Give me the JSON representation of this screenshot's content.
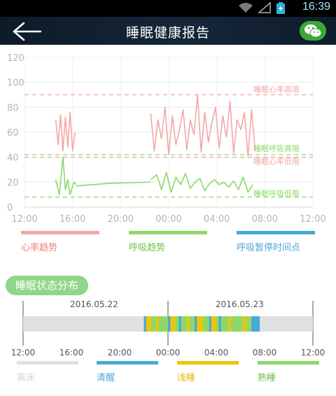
{
  "status_bar": {
    "time": "16:39"
  },
  "header": {
    "title": "睡眠健康报告"
  },
  "colors": {
    "heart": "#f4a7a6",
    "breath": "#8dd868",
    "pause": "#4aa8d8",
    "awake": "#4aa8d8",
    "light": "#f0c400",
    "deep": "#8dd868",
    "offbed": "#e0e0e0"
  },
  "chart_data": {
    "type": "line",
    "y_ticks": [
      "0",
      "20",
      "40",
      "60",
      "80",
      "100",
      "120"
    ],
    "x_ticks": [
      "12:00",
      "16:00",
      "20:00",
      "00:00",
      "04:00",
      "08:00",
      "12:00"
    ],
    "ylim": [
      0,
      120
    ],
    "thresholds": [
      {
        "label": "睡眠心率高限",
        "value": 90,
        "color": "#f4a7a6"
      },
      {
        "label": "睡眠呼吸高限",
        "value": 42,
        "color": "#8dd868"
      },
      {
        "label": "睡眠心率低限",
        "value": 40,
        "color": "#f4a7a6"
      },
      {
        "label": "睡眠呼吸低限",
        "value": 8,
        "color": "#8dd868"
      }
    ],
    "series": [
      {
        "name": "心率趋势",
        "color": "#f4a7a6",
        "segments": [
          {
            "x": [
              14.6,
              14.8,
              15.0,
              15.2,
              15.4,
              15.6,
              15.8,
              16.0,
              16.2
            ],
            "y": [
              70,
              50,
              74,
              45,
              72,
              48,
              76,
              45,
              60
            ]
          },
          {
            "x": [
              22.5,
              22.8,
              23.1,
              23.4,
              23.7,
              24.0,
              24.3,
              24.6,
              24.9,
              25.2,
              25.5,
              25.8,
              26.1,
              26.4,
              26.7,
              27.0,
              27.3,
              27.6,
              27.9,
              28.2,
              28.5,
              28.8,
              29.1,
              29.4,
              29.7,
              30.0,
              30.3,
              30.6,
              30.9,
              31.2
            ],
            "y": [
              75,
              45,
              70,
              55,
              80,
              42,
              73,
              50,
              62,
              78,
              46,
              70,
              58,
              90,
              44,
              76,
              52,
              68,
              80,
              47,
              73,
              56,
              85,
              43,
              70,
              62,
              76,
              41,
              78,
              45
            ]
          }
        ]
      },
      {
        "name": "呼吸趋势",
        "color": "#8dd868",
        "segments": [
          {
            "x": [
              14.6,
              14.9,
              15.2,
              15.4,
              15.6,
              15.8,
              16.1,
              16.3
            ],
            "y": [
              22,
              10,
              40,
              14,
              22,
              10,
              20,
              18
            ]
          },
          {
            "x": [
              16.3,
              19.0,
              22.5
            ],
            "y": [
              17,
              19,
              20
            ]
          },
          {
            "x": [
              22.5,
              23.0,
              23.4,
              23.8,
              24.2,
              24.6,
              25.0,
              25.4,
              25.8,
              26.2,
              26.6,
              27.0,
              27.4,
              27.8,
              28.2,
              28.6,
              29.0,
              29.4,
              29.8,
              30.2,
              30.6,
              31.0
            ],
            "y": [
              22,
              26,
              14,
              28,
              12,
              24,
              18,
              27,
              15,
              20,
              23,
              13,
              19,
              22,
              18,
              20,
              16,
              21,
              14,
              24,
              12,
              18
            ]
          }
        ]
      },
      {
        "name": "呼吸暂停时间点",
        "color": "#4aa8d8",
        "segments": []
      }
    ]
  },
  "legend": [
    {
      "label": "心率趋势"
    },
    {
      "label": "呼吸趋势"
    },
    {
      "label": "呼吸暂停时间点"
    }
  ],
  "distribution": {
    "title": "睡眠状态分布",
    "dates": [
      "2016.05.22",
      "2016.05.23"
    ],
    "x_ticks": [
      "12:00",
      "16:00",
      "20:00",
      "00:00",
      "04:00",
      "08:00",
      "12:00"
    ],
    "segments": [
      {
        "start": 22.0,
        "end": 22.2,
        "state": "awake"
      },
      {
        "start": 22.2,
        "end": 22.6,
        "state": "light"
      },
      {
        "start": 22.6,
        "end": 23.0,
        "state": "deep"
      },
      {
        "start": 23.0,
        "end": 23.2,
        "state": "light"
      },
      {
        "start": 23.2,
        "end": 24.0,
        "state": "deep"
      },
      {
        "start": 24.0,
        "end": 24.2,
        "state": "awake"
      },
      {
        "start": 24.2,
        "end": 24.6,
        "state": "light"
      },
      {
        "start": 24.6,
        "end": 24.9,
        "state": "deep"
      },
      {
        "start": 24.9,
        "end": 25.1,
        "state": "awake"
      },
      {
        "start": 25.1,
        "end": 25.6,
        "state": "deep"
      },
      {
        "start": 25.6,
        "end": 25.8,
        "state": "light"
      },
      {
        "start": 25.8,
        "end": 26.2,
        "state": "deep"
      },
      {
        "start": 26.2,
        "end": 26.4,
        "state": "awake"
      },
      {
        "start": 26.4,
        "end": 26.9,
        "state": "light"
      },
      {
        "start": 26.9,
        "end": 27.4,
        "state": "deep"
      },
      {
        "start": 27.4,
        "end": 27.6,
        "state": "awake"
      },
      {
        "start": 27.6,
        "end": 28.0,
        "state": "light"
      },
      {
        "start": 28.0,
        "end": 28.2,
        "state": "deep"
      },
      {
        "start": 28.2,
        "end": 28.4,
        "state": "awake"
      },
      {
        "start": 28.4,
        "end": 29.0,
        "state": "deep"
      },
      {
        "start": 29.0,
        "end": 29.2,
        "state": "light"
      },
      {
        "start": 29.2,
        "end": 30.2,
        "state": "deep"
      },
      {
        "start": 30.2,
        "end": 30.5,
        "state": "light"
      },
      {
        "start": 30.5,
        "end": 30.9,
        "state": "deep"
      },
      {
        "start": 30.9,
        "end": 31.6,
        "state": "awake"
      }
    ],
    "legend": [
      {
        "label": "离床",
        "key": "offbed"
      },
      {
        "label": "清醒",
        "key": "awake"
      },
      {
        "label": "浅睡",
        "key": "light"
      },
      {
        "label": "熟睡",
        "key": "deep"
      }
    ]
  }
}
